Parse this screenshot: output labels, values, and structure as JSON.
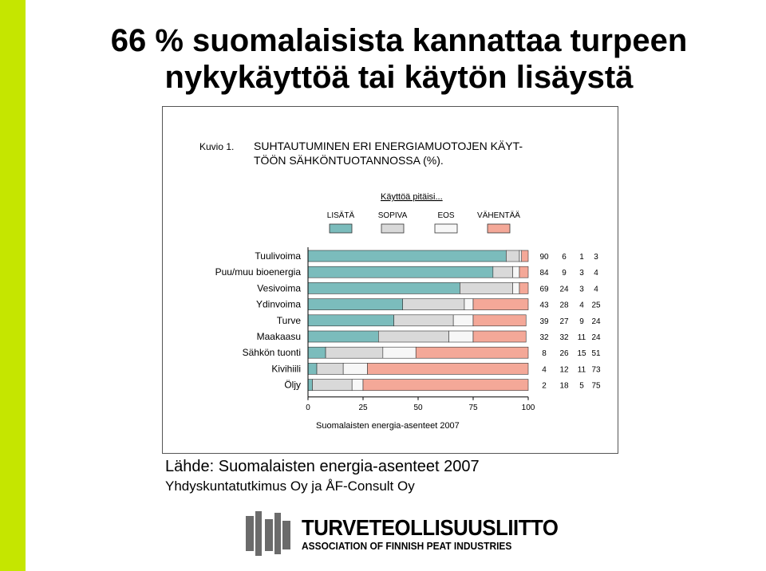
{
  "slide": {
    "title_line1": "66 % suomalaisista kannattaa turpeen",
    "title_line2": "nykykäyttöä tai käytön lisäystä"
  },
  "chart_data": {
    "type": "bar",
    "stacked": true,
    "orientation": "horizontal",
    "figure_label": "Kuvio 1.",
    "title_line1": "SUHTAUTUMINEN ERI ENERGIAMUOTOJEN KÄYT-",
    "title_line2": "TÖÖN SÄHKÖNTUOTANNOSSA (%).",
    "legend_title": "Käyttöä pitäisi...",
    "legend_position": "top",
    "categories": [
      "Tuulivoima",
      "Puu/muu bioenergia",
      "Vesivoima",
      "Ydinvoima",
      "Turve",
      "Maakaasu",
      "Sähkön tuonti",
      "Kivihiili",
      "Öljy"
    ],
    "series": [
      {
        "name": "LISÄTÄ",
        "color": "#7bbcbc",
        "values": [
          90,
          84,
          69,
          43,
          39,
          32,
          8,
          4,
          2
        ]
      },
      {
        "name": "SOPIVA",
        "color": "#d9d9d9",
        "values": [
          6,
          9,
          24,
          28,
          27,
          32,
          26,
          12,
          18
        ]
      },
      {
        "name": "EOS",
        "color": "#f7f7f7",
        "values": [
          1,
          3,
          3,
          4,
          9,
          11,
          15,
          11,
          5
        ]
      },
      {
        "name": "VÄHENTÄÄ",
        "color": "#f4a898",
        "values": [
          3,
          4,
          4,
          25,
          24,
          24,
          51,
          73,
          75
        ]
      }
    ],
    "xlim": [
      0,
      100
    ],
    "xticks": [
      0,
      25,
      50,
      75,
      100
    ],
    "xlabel": "Suomalaisten energia-asenteet 2007",
    "grid": false
  },
  "source": {
    "line1": "Lähde: Suomalaisten energia-asenteet 2007",
    "line2": "Yhdyskuntatutkimus Oy ja ÅF-Consult Oy"
  },
  "logo": {
    "name": "TURVETEOLLISUUSLIITTO",
    "subtitle": "ASSOCIATION OF FINNISH PEAT INDUSTRIES"
  }
}
